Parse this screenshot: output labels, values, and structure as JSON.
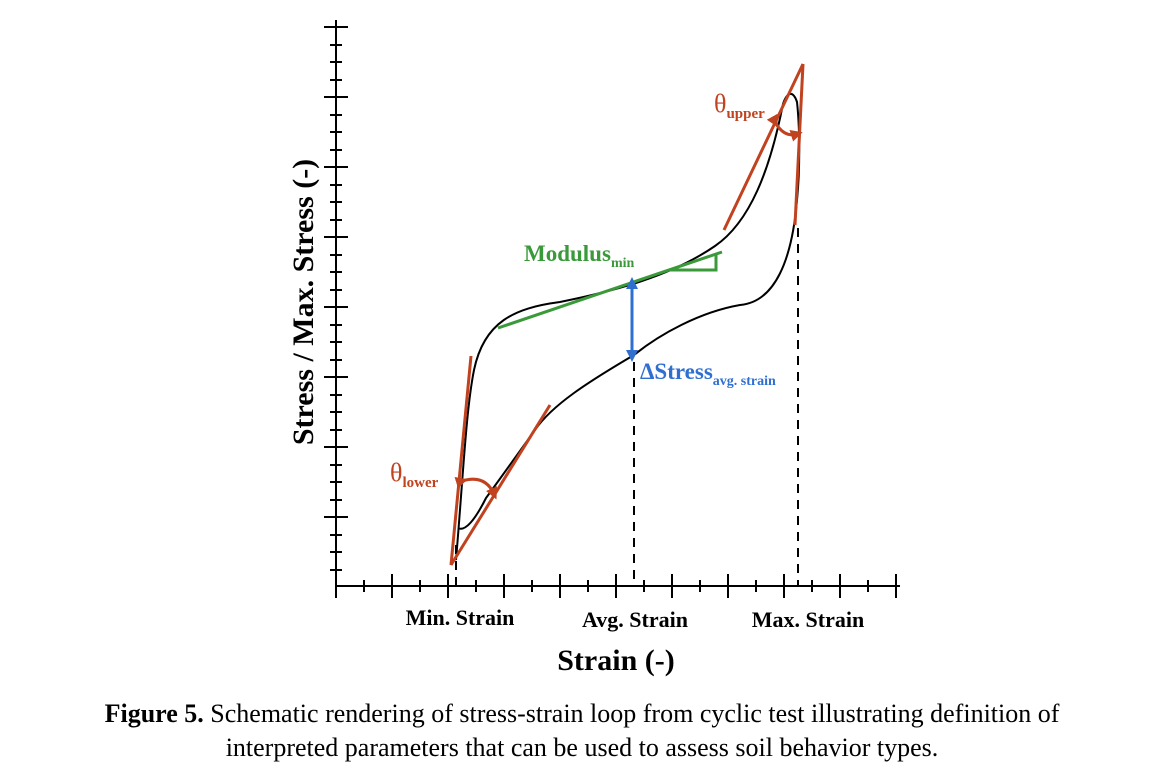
{
  "axes": {
    "y_label": "Stress / Max. Stress (-)",
    "x_label": "Strain (-)",
    "x_ticks": [
      "Min. Strain",
      "Avg. Strain",
      "Max. Strain"
    ]
  },
  "annotations": {
    "modulus_base": "Modulus",
    "modulus_sub": "min",
    "delta_base": "ΔStress",
    "delta_sub": "avg. strain",
    "theta_upper_base": "θ",
    "theta_upper_sub": "upper",
    "theta_lower_base": "θ",
    "theta_lower_sub": "lower"
  },
  "caption": {
    "label": "Figure 5.",
    "line1": "Schematic rendering of stress-strain loop from cyclic test illustrating definition of",
    "line2": "interpreted parameters that can be used to assess soil behavior types."
  },
  "colors": {
    "curve": "#000000",
    "tangent": "#c0421f",
    "modulus": "#3a9a3a",
    "delta": "#2f6fd0",
    "text": "#000000"
  }
}
